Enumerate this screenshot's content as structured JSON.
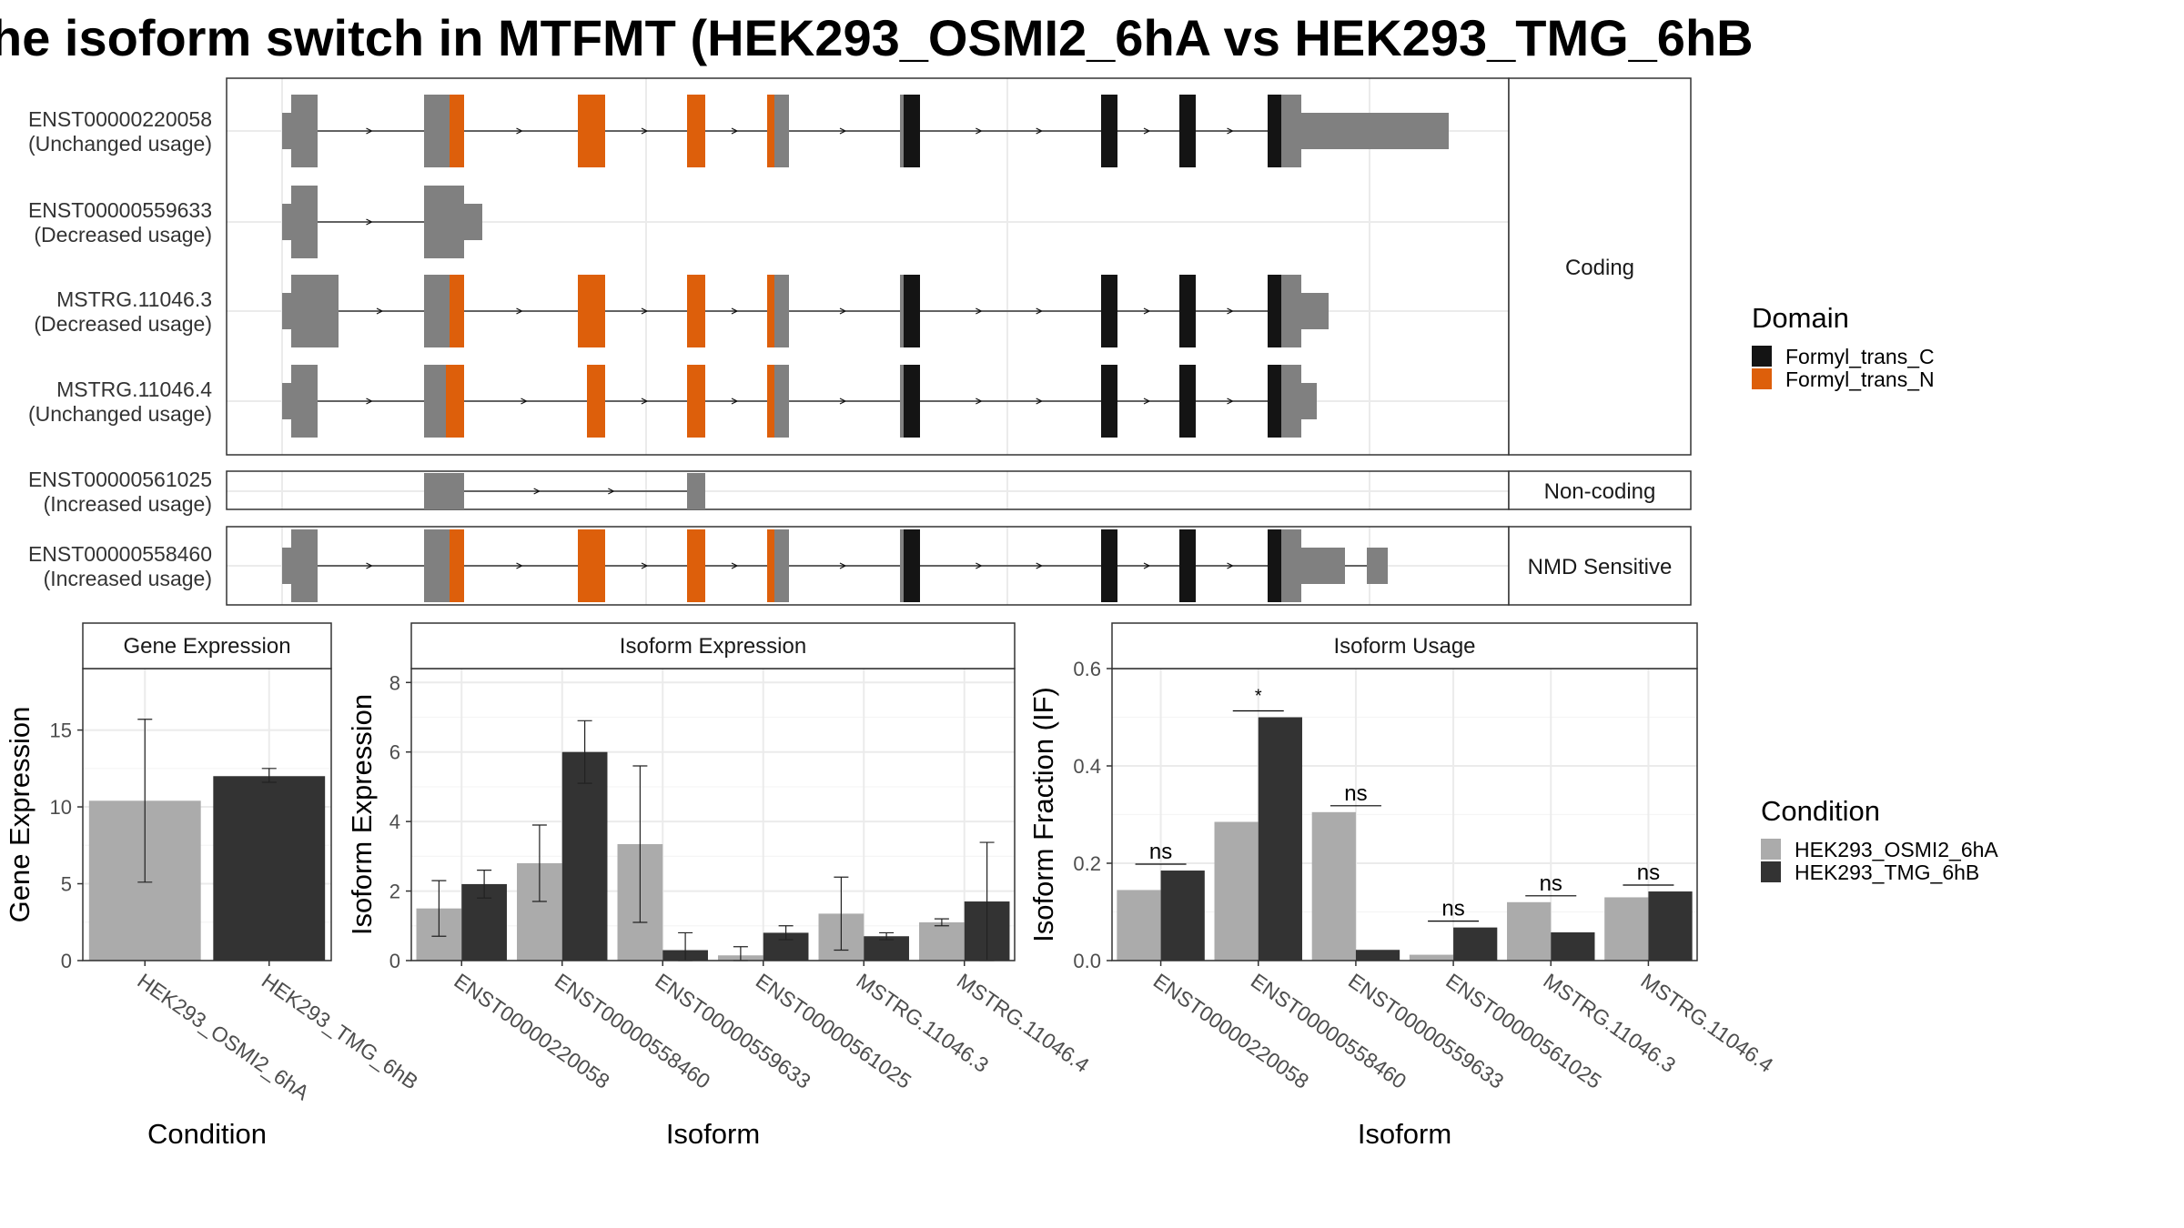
{
  "title": "he isoform switch in MTFMT (HEK293_OSMI2_6hA vs HEK293_TMG_6hB",
  "colors": {
    "utr": "#808080",
    "formyl_trans_c": "#141414",
    "formyl_trans_n": "#DD5F0B",
    "condition_a": "#ABABAB",
    "condition_b": "#333333"
  },
  "chart_data": [
    {
      "type": "gene-structure",
      "name": "isoform structures",
      "panels": [
        {
          "label": "Coding",
          "isoforms": [
            {
              "id": "ENST00000220058",
              "usage": "(Unchanged usage)"
            },
            {
              "id": "ENST00000559633",
              "usage": "(Decreased usage)"
            },
            {
              "id": "MSTRG.11046.3",
              "usage": "(Decreased usage)"
            },
            {
              "id": "MSTRG.11046.4",
              "usage": "(Unchanged usage)"
            }
          ]
        },
        {
          "label": "Non-coding",
          "isoforms": [
            {
              "id": "ENST00000561025",
              "usage": "(Increased usage)"
            }
          ]
        },
        {
          "label": "NMD Sensitive",
          "isoforms": [
            {
              "id": "ENST00000558460",
              "usage": "(Increased usage)"
            }
          ]
        }
      ],
      "legend": {
        "title": "Domain",
        "entries": [
          {
            "name": "Formyl_trans_C",
            "color": "#141414"
          },
          {
            "name": "Formyl_trans_N",
            "color": "#DD5F0B"
          }
        ]
      }
    },
    {
      "type": "bar",
      "strip": "Gene Expression",
      "xlabel": "Condition",
      "ylabel": "Gene Expression",
      "ylim": [
        0,
        19
      ],
      "yticks": [
        0,
        5,
        10,
        15
      ],
      "categories": [
        "HEK293_OSMI2_6hA",
        "HEK293_TMG_6hB"
      ],
      "values": [
        10.4,
        12.0
      ],
      "errors": [
        [
          5.1,
          15.7
        ],
        [
          11.6,
          12.5
        ]
      ]
    },
    {
      "type": "bar",
      "strip": "Isoform Expression",
      "xlabel": "Isoform",
      "ylabel": "Isoform Expression",
      "ylim": [
        0,
        8.4
      ],
      "yticks": [
        0,
        2,
        4,
        6,
        8
      ],
      "categories": [
        "ENST00000220058",
        "ENST00000558460",
        "ENST00000559633",
        "ENST00000561025",
        "MSTRG.11046.3",
        "MSTRG.11046.4"
      ],
      "series": [
        {
          "name": "HEK293_OSMI2_6hA",
          "values": [
            1.5,
            2.8,
            3.35,
            0.15,
            1.35,
            1.1
          ],
          "errors": [
            [
              0.7,
              2.3
            ],
            [
              1.7,
              3.9
            ],
            [
              1.1,
              5.6
            ],
            [
              0.0,
              0.4
            ],
            [
              0.3,
              2.4
            ],
            [
              1.0,
              1.2
            ]
          ]
        },
        {
          "name": "HEK293_TMG_6hB",
          "values": [
            2.2,
            6.0,
            0.3,
            0.8,
            0.7,
            1.7
          ],
          "errors": [
            [
              1.8,
              2.6
            ],
            [
              5.1,
              6.9
            ],
            [
              0.0,
              0.8
            ],
            [
              0.6,
              1.0
            ],
            [
              0.6,
              0.8
            ],
            [
              0.0,
              3.4
            ]
          ]
        }
      ]
    },
    {
      "type": "bar",
      "strip": "Isoform Usage",
      "xlabel": "Isoform",
      "ylabel": "Isoform Fraction (IF)",
      "ylim": [
        0,
        0.6
      ],
      "yticks": [
        0,
        0.2,
        0.4,
        0.6
      ],
      "ytick_labels": [
        "0.0",
        "0.2",
        "0.4",
        "0.6"
      ],
      "categories": [
        "ENST00000220058",
        "ENST00000558460",
        "ENST00000559633",
        "ENST00000561025",
        "MSTRG.11046.3",
        "MSTRG.11046.4"
      ],
      "series": [
        {
          "name": "HEK293_OSMI2_6hA",
          "values": [
            0.145,
            0.285,
            0.305,
            0.012,
            0.12,
            0.13
          ]
        },
        {
          "name": "HEK293_TMG_6hB",
          "values": [
            0.185,
            0.5,
            0.022,
            0.068,
            0.058,
            0.142
          ]
        }
      ],
      "significance": [
        "ns",
        "*",
        "ns",
        "ns",
        "ns",
        "ns"
      ]
    }
  ],
  "condition_legend": {
    "title": "Condition",
    "entries": [
      {
        "name": "HEK293_OSMI2_6hA",
        "color": "#ABABAB"
      },
      {
        "name": "HEK293_TMG_6hB",
        "color": "#333333"
      }
    ]
  }
}
